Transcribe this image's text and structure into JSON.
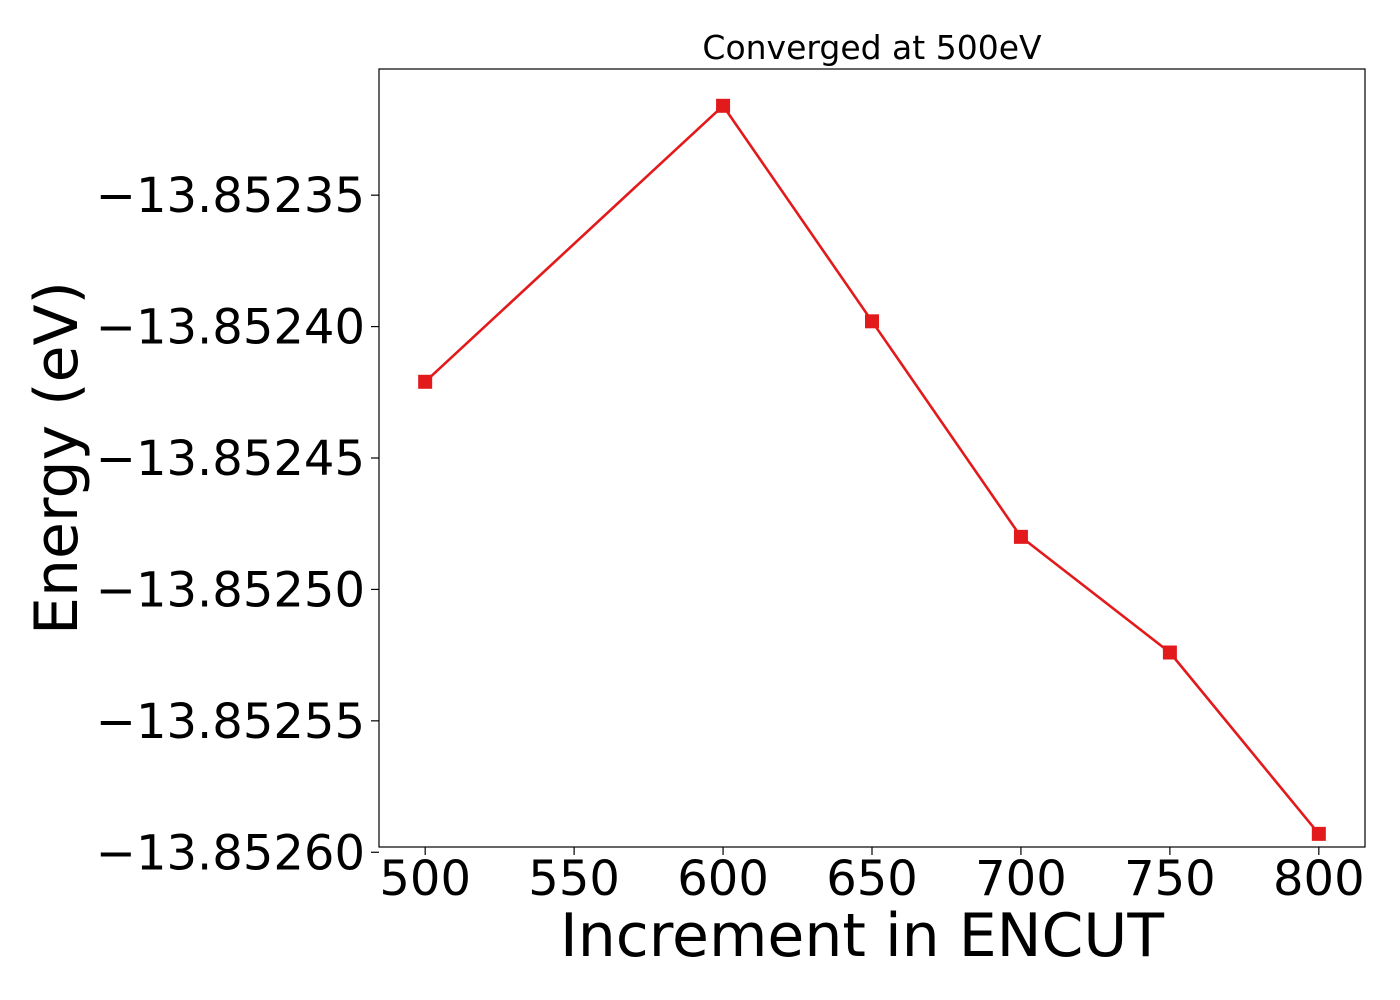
{
  "chart_data": {
    "type": "line",
    "title": "Converged at 500eV",
    "xlabel": "Increment in ENCUT",
    "ylabel": "Energy (eV)",
    "x": [
      500,
      600,
      650,
      700,
      750,
      800
    ],
    "series": [
      {
        "values": [
          -13.852421,
          -13.852316,
          -13.852398,
          -13.85248,
          -13.852524,
          -13.852593
        ],
        "color": "#e31a1c",
        "marker": "square"
      }
    ],
    "xticks": [
      500,
      550,
      600,
      650,
      700,
      750,
      800
    ],
    "xtick_labels": [
      "500",
      "550",
      "600",
      "650",
      "700",
      "750",
      "800"
    ],
    "yticks": [
      -13.85235,
      -13.8524,
      -13.85245,
      -13.8525,
      -13.85255,
      -13.8526
    ],
    "ytick_labels": [
      "−13.85235",
      "−13.85240",
      "−13.85245",
      "−13.85250",
      "−13.85255",
      "−13.85260"
    ],
    "xlim": [
      484.5,
      815.5
    ],
    "ylim": [
      -13.852598,
      -13.852302
    ],
    "grid": false,
    "legend": "none"
  }
}
